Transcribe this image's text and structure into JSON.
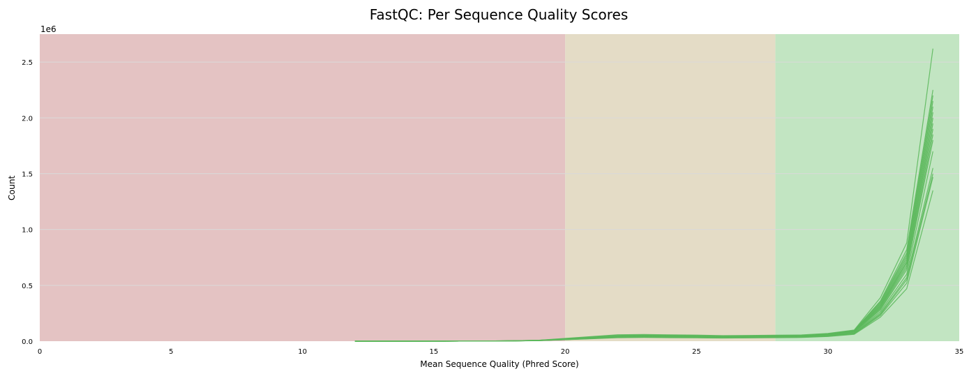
{
  "chart_data": {
    "type": "line",
    "title": "FastQC: Per Sequence Quality Scores",
    "xlabel": "Mean Sequence Quality (Phred Score)",
    "ylabel": "Count",
    "y_offset_label": "1e6",
    "xlim": [
      0,
      35
    ],
    "ylim": [
      0,
      2750000
    ],
    "x_ticks": [
      0,
      5,
      10,
      15,
      20,
      25,
      30,
      35
    ],
    "y_ticks": [
      0,
      500000,
      1000000,
      1500000,
      2000000,
      2500000
    ],
    "y_tick_labels": [
      "0.0",
      "0.5",
      "1.0",
      "1.5",
      "2.0",
      "2.5"
    ],
    "grid": true,
    "legend": "none",
    "line_color": "#5cb85c",
    "bands": [
      {
        "from": 0,
        "to": 20,
        "color": "#e4c3c3",
        "status": "fail"
      },
      {
        "from": 20,
        "to": 28,
        "color": "#e4dcc6",
        "status": "warn"
      },
      {
        "from": 28,
        "to": 35,
        "color": "#c2e5c2",
        "status": "pass"
      }
    ],
    "x": [
      12,
      13,
      14,
      15,
      16,
      17,
      18,
      19,
      20,
      21,
      22,
      23,
      24,
      25,
      26,
      27,
      28,
      29,
      30,
      31,
      32,
      33,
      34
    ],
    "series": [
      {
        "values": [
          0,
          0,
          0,
          500,
          1000,
          2000,
          4000,
          9000,
          25000,
          42000,
          58000,
          60000,
          57000,
          55000,
          50000,
          52000,
          54000,
          56000,
          70000,
          100000,
          390000,
          880000,
          2620000
        ]
      },
      {
        "values": [
          0,
          0,
          0,
          400,
          900,
          1800,
          3500,
          8000,
          22000,
          38000,
          52000,
          55000,
          52000,
          50000,
          46000,
          48000,
          50000,
          52000,
          66000,
          96000,
          360000,
          820000,
          2250000
        ]
      },
      {
        "values": [
          0,
          0,
          0,
          400,
          900,
          1800,
          3500,
          8000,
          22000,
          37000,
          50000,
          53000,
          50000,
          48000,
          45000,
          47000,
          49000,
          51000,
          65000,
          95000,
          350000,
          790000,
          2200000
        ]
      },
      {
        "values": [
          0,
          0,
          0,
          400,
          850,
          1700,
          3400,
          7800,
          21000,
          36000,
          49000,
          52000,
          49000,
          47000,
          44000,
          46000,
          48000,
          50000,
          63000,
          93000,
          340000,
          770000,
          2150000
        ]
      },
      {
        "values": [
          0,
          0,
          0,
          350,
          800,
          1600,
          3300,
          7500,
          20000,
          35000,
          47000,
          50000,
          48000,
          46000,
          43000,
          45000,
          47000,
          49000,
          62000,
          91000,
          330000,
          750000,
          2100000
        ]
      },
      {
        "values": [
          0,
          0,
          0,
          350,
          800,
          1600,
          3200,
          7300,
          19500,
          34000,
          46000,
          49000,
          47000,
          45000,
          42000,
          44000,
          46000,
          48000,
          61000,
          90000,
          320000,
          730000,
          2050000
        ]
      },
      {
        "values": [
          0,
          0,
          0,
          350,
          750,
          1500,
          3100,
          7000,
          19000,
          33000,
          45000,
          48000,
          46000,
          44000,
          41000,
          43000,
          45000,
          47000,
          60000,
          88000,
          315000,
          710000,
          2000000
        ]
      },
      {
        "values": [
          0,
          0,
          0,
          300,
          750,
          1500,
          3000,
          6800,
          18500,
          32000,
          44000,
          47000,
          45000,
          43000,
          40000,
          42000,
          44000,
          46000,
          58000,
          86000,
          305000,
          700000,
          1950000
        ]
      },
      {
        "values": [
          0,
          0,
          0,
          300,
          700,
          1400,
          2900,
          6600,
          18000,
          31000,
          43000,
          46000,
          44000,
          42000,
          39000,
          41000,
          43000,
          45000,
          57000,
          84000,
          300000,
          680000,
          1900000
        ]
      },
      {
        "values": [
          0,
          0,
          0,
          300,
          700,
          1400,
          2800,
          6400,
          17500,
          30000,
          42000,
          45000,
          43000,
          41000,
          38000,
          40000,
          42000,
          44000,
          56000,
          83000,
          290000,
          660000,
          1850000
        ]
      },
      {
        "values": [
          0,
          0,
          0,
          300,
          650,
          1300,
          2700,
          6200,
          17000,
          29000,
          41000,
          44000,
          42000,
          40000,
          37000,
          39000,
          41000,
          43000,
          55000,
          81000,
          280000,
          640000,
          1800000
        ]
      },
      {
        "values": [
          0,
          0,
          0,
          250,
          600,
          1200,
          2500,
          5800,
          16000,
          27000,
          38000,
          41000,
          39000,
          37000,
          35000,
          36000,
          38000,
          40000,
          51000,
          76000,
          265000,
          600000,
          1700000
        ]
      },
      {
        "values": [
          0,
          0,
          0,
          250,
          550,
          1100,
          2300,
          5400,
          15000,
          25000,
          36000,
          38000,
          36000,
          35000,
          33000,
          34000,
          36000,
          38000,
          48000,
          72000,
          250000,
          570000,
          1550000
        ]
      },
      {
        "values": [
          0,
          0,
          0,
          200,
          500,
          1000,
          2100,
          5000,
          14000,
          24000,
          34000,
          36000,
          34000,
          33000,
          31000,
          32000,
          34000,
          36000,
          46000,
          68000,
          240000,
          550000,
          1500000
        ]
      },
      {
        "values": [
          0,
          0,
          0,
          200,
          500,
          1000,
          2000,
          4800,
          13500,
          23000,
          33000,
          35000,
          33000,
          32000,
          30000,
          31000,
          33000,
          35000,
          44000,
          66000,
          230000,
          520000,
          1470000
        ]
      },
      {
        "values": [
          0,
          0,
          0,
          200,
          450,
          900,
          1900,
          4500,
          13000,
          22000,
          31000,
          33000,
          31000,
          30000,
          28000,
          29000,
          31000,
          33000,
          42000,
          62000,
          215000,
          470000,
          1350000
        ]
      }
    ]
  }
}
